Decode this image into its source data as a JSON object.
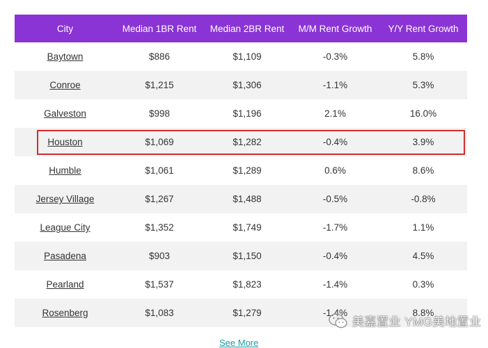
{
  "table": {
    "headers": [
      "City",
      "Median 1BR Rent",
      "Median 2BR Rent",
      "M/M Rent Growth",
      "Y/Y Rent Growth"
    ],
    "rows": [
      [
        "Baytown",
        "$886",
        "$1,109",
        "-0.3%",
        "5.8%"
      ],
      [
        "Conroe",
        "$1,215",
        "$1,306",
        "-1.1%",
        "5.3%"
      ],
      [
        "Galveston",
        "$998",
        "$1,196",
        "2.1%",
        "16.0%"
      ],
      [
        "Houston",
        "$1,069",
        "$1,282",
        "-0.4%",
        "3.9%"
      ],
      [
        "Humble",
        "$1,061",
        "$1,289",
        "0.6%",
        "8.6%"
      ],
      [
        "Jersey Village",
        "$1,267",
        "$1,488",
        "-0.5%",
        "-0.8%"
      ],
      [
        "League City",
        "$1,352",
        "$1,749",
        "-1.7%",
        "1.1%"
      ],
      [
        "Pasadena",
        "$903",
        "$1,150",
        "-0.4%",
        "4.5%"
      ],
      [
        "Pearland",
        "$1,537",
        "$1,823",
        "-1.4%",
        "0.3%"
      ],
      [
        "Rosenberg",
        "$1,083",
        "$1,279",
        "-1.4%",
        "8.8%"
      ]
    ],
    "highlighted_city": "Houston"
  },
  "see_more": "See More",
  "watermark": "美嘉置业 YMG美地置业",
  "colors": {
    "header_bg": "#8a34d6",
    "stripe_bg": "#f2f2f2",
    "highlight_border": "#d62b2b",
    "link_teal": "#1b9aa0"
  },
  "icons": {
    "watermark_icon": "wechat-icon"
  }
}
